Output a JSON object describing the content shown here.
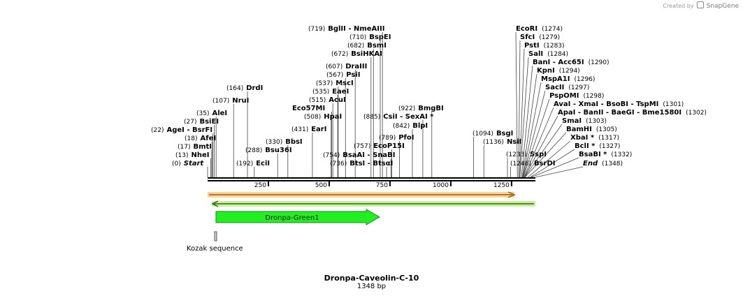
{
  "credit": {
    "prefix": "Created by",
    "brand": "SnapGene"
  },
  "map": {
    "title": "Dronpa-Caveolin-C-10",
    "length_label": "1348 bp",
    "length": 1348,
    "ticks": [
      "250",
      "500",
      "750",
      "1000",
      "1250"
    ],
    "tick_values": [
      250,
      500,
      750,
      1000,
      1250
    ]
  },
  "features": [
    {
      "name": "Dronpa-Green1",
      "start": 34,
      "end": 711,
      "color": "#22ee22",
      "label": "Dronpa-Green1"
    },
    {
      "name": "Kozak sequence",
      "start": 28,
      "end": 37,
      "color": "#d9d9d9",
      "label": "Kozak sequence"
    },
    {
      "name": "forward-arrow",
      "start": 0,
      "end": 1281,
      "color": "#f0a030"
    },
    {
      "name": "reverse-arrow",
      "start": 20,
      "end": 1348,
      "color": "#a8e070"
    }
  ],
  "sites": {
    "left": [
      {
        "id": "start",
        "name": "Start",
        "pos": "(0)",
        "bp": 0,
        "italic": true
      },
      {
        "id": "nhei",
        "name": "NheI",
        "pos": "(13)",
        "bp": 13
      },
      {
        "id": "bmti",
        "name": "BmtI",
        "pos": "(17)",
        "bp": 17
      },
      {
        "id": "afei",
        "name": "AfeI",
        "pos": "(18)",
        "bp": 18
      },
      {
        "id": "agei",
        "name": "AgeI",
        "name2": "- BsrFI",
        "pos": "(22)",
        "bp": 22
      },
      {
        "id": "bsiei",
        "name": "BsiEI",
        "pos": "(27)",
        "bp": 27
      },
      {
        "id": "alei",
        "name": "AleI",
        "pos": "(35)",
        "bp": 35
      },
      {
        "id": "nrui",
        "name": "NruI",
        "pos": "(107)",
        "bp": 107
      },
      {
        "id": "drdi",
        "name": "DrdI",
        "pos": "(164)",
        "bp": 164
      },
      {
        "id": "ecii",
        "name": "EciI",
        "pos": "(192)",
        "bp": 192
      },
      {
        "id": "bsu36i",
        "name": "Bsu36I",
        "pos": "(288)",
        "bp": 288
      },
      {
        "id": "bbsi",
        "name": "BbsI",
        "pos": "(330)",
        "bp": 330
      },
      {
        "id": "eari",
        "name": "EarI",
        "pos": "(431)",
        "bp": 431
      },
      {
        "id": "hpai",
        "name": "HpaI",
        "pos": "(508)",
        "bp": 508
      },
      {
        "id": "eco57mi",
        "name": "Eco57MI",
        "pos": "",
        "bp": 510
      },
      {
        "id": "acui",
        "name": "AcuI",
        "pos": "(515)",
        "bp": 515
      },
      {
        "id": "eaei",
        "name": "EaeI",
        "pos": "(535)",
        "bp": 535
      },
      {
        "id": "msci",
        "name": "MscI",
        "pos": "(537)",
        "bp": 537
      },
      {
        "id": "psii",
        "name": "PsiI",
        "pos": "(567)",
        "bp": 567
      },
      {
        "id": "draiii",
        "name": "DraIII",
        "pos": "(607)",
        "bp": 607
      },
      {
        "id": "bsihkai",
        "name": "BsiHKAI",
        "pos": "(672)",
        "bp": 672
      },
      {
        "id": "bsmi",
        "name": "BsmI",
        "pos": "(682)",
        "bp": 682
      },
      {
        "id": "bspei",
        "name": "BspEI",
        "pos": "(710)",
        "bp": 710
      },
      {
        "id": "bglii",
        "name": "BglII",
        "name2": "- NmeAIII",
        "pos": "(719)",
        "bp": 719
      },
      {
        "id": "bstsi",
        "name": "BtsI",
        "name2": "- BtsαI",
        "pos": "(736)",
        "bp": 736
      },
      {
        "id": "bsaai",
        "name": "BsaAI",
        "name2": "- SnaBI",
        "pos": "(754)",
        "bp": 754
      },
      {
        "id": "ecop15i",
        "name": "EcoP15I",
        "pos": "(757)",
        "bp": 757
      },
      {
        "id": "pfoi",
        "name": "PfoI",
        "pos": "(789)",
        "bp": 789
      },
      {
        "id": "blpi",
        "name": "BlpI",
        "pos": "(842)",
        "bp": 842
      },
      {
        "id": "csii",
        "name": "CsiI",
        "name2": "- SexAI *",
        "pos": "(885)",
        "bp": 885
      },
      {
        "id": "bmgbi",
        "name": "BmgBI",
        "pos": "(922)",
        "bp": 922
      },
      {
        "id": "bsgi",
        "name": "BsgI",
        "pos": "(1094)",
        "bp": 1094
      },
      {
        "id": "nsii",
        "name": "NsiI",
        "pos": "(1136)",
        "bp": 1136
      },
      {
        "id": "sspi",
        "name": "SspI",
        "pos": "(1233)",
        "bp": 1233
      },
      {
        "id": "bsrdi",
        "name": "BsrDI",
        "pos": "(1246)",
        "bp": 1246
      }
    ],
    "right": [
      {
        "id": "ecori",
        "name": "EcoRI",
        "pos": "(1274)",
        "bp": 1274
      },
      {
        "id": "sfci",
        "name": "SfcI",
        "pos": "(1279)",
        "bp": 1279
      },
      {
        "id": "psti",
        "name": "PstI",
        "pos": "(1283)",
        "bp": 1283
      },
      {
        "id": "sali",
        "name": "SalI",
        "pos": "(1284)",
        "bp": 1284
      },
      {
        "id": "bani",
        "name": "BanI",
        "name2": "- Acc65I",
        "pos": "(1290)",
        "bp": 1290
      },
      {
        "id": "kpni",
        "name": "KpnI",
        "pos": "(1294)",
        "bp": 1294
      },
      {
        "id": "mspa1i",
        "name": "MspA1I",
        "pos": "(1296)",
        "bp": 1296
      },
      {
        "id": "sacii",
        "name": "SacII",
        "pos": "(1297)",
        "bp": 1297
      },
      {
        "id": "psp0mi",
        "name": "PspOMI",
        "pos": "(1298)",
        "bp": 1298
      },
      {
        "id": "avai",
        "name": "AvaI",
        "name2": "- XmaI - BsoBI - TspMI",
        "pos": "(1301)",
        "bp": 1301
      },
      {
        "id": "apai",
        "name": "ApaI",
        "name2": "- BanII - BaeGI - Bme1580I",
        "pos": "(1302)",
        "bp": 1302
      },
      {
        "id": "smai",
        "name": "SmaI",
        "pos": "(1303)",
        "bp": 1303
      },
      {
        "id": "bamhi",
        "name": "BamHI",
        "pos": "(1305)",
        "bp": 1305
      },
      {
        "id": "xbai",
        "name": "XbaI *",
        "pos": "(1317)",
        "bp": 1317
      },
      {
        "id": "bcli",
        "name": "BclI *",
        "pos": "(1327)",
        "bp": 1327
      },
      {
        "id": "bsabi",
        "name": "BsaBI *",
        "pos": "(1332)",
        "bp": 1332
      },
      {
        "id": "end",
        "name": "End",
        "pos": "(1348)",
        "bp": 1348,
        "italic": true
      }
    ]
  }
}
